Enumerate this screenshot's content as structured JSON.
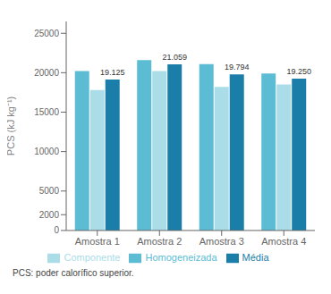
{
  "chart_data": {
    "type": "bar",
    "categories": [
      "Amostra 1",
      "Amostra 2",
      "Amostra 3",
      "Amostra 4"
    ],
    "series": [
      {
        "name": "Homogeneizada",
        "color": "#5bbcd4",
        "values": [
          20200,
          21600,
          21100,
          19900
        ]
      },
      {
        "name": "Componente",
        "color": "#aadde8",
        "values": [
          17800,
          20200,
          18200,
          18500
        ]
      },
      {
        "name": "Média",
        "color": "#1a7ea8",
        "values": [
          19125,
          21059,
          19794,
          19250
        ],
        "data_labels": true,
        "value_labels": [
          "19.125",
          "21.059",
          "19.794",
          "19.250"
        ]
      }
    ],
    "ylabel": "PCS (kJ kg⁻¹)",
    "ylim": [
      0,
      26500
    ],
    "yticks": [
      0,
      2000,
      5000,
      10000,
      15000,
      20000,
      25000
    ],
    "grid": false,
    "legend": "bottom",
    "annotations": [
      "PCS: poder calorífico superior."
    ]
  }
}
